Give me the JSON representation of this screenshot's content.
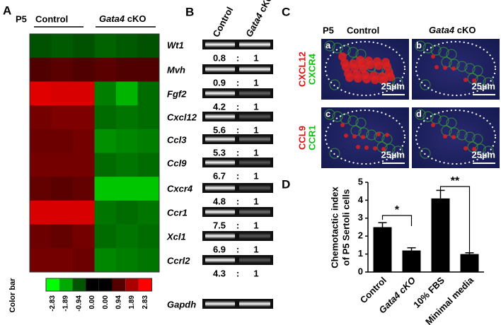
{
  "panel_a": {
    "label": "A",
    "stage": "P5",
    "control": "Control",
    "cko_gene": "Gata4",
    "cko_suffix": "cKO",
    "genes": [
      "Wt1",
      "Mvh",
      "Fgf2",
      "Cxcl12",
      "Ccl3",
      "Ccl9",
      "Cxcr4",
      "Ccr1",
      "Xcl1",
      "Ccrl2"
    ],
    "heatmap": {
      "type": "heatmap",
      "values": [
        [
          -0.9,
          -1.0,
          -0.9,
          -1.1,
          -1.0,
          -0.9
        ],
        [
          0.9,
          1.0,
          0.9,
          1.0,
          0.9,
          0.9
        ],
        [
          2.5,
          2.4,
          2.4,
          -1.4,
          -2.0,
          -1.2
        ],
        [
          1.3,
          1.4,
          1.4,
          -1.2,
          -1.3,
          -1.2
        ],
        [
          1.2,
          1.2,
          1.3,
          -1.6,
          -1.5,
          -1.4
        ],
        [
          1.3,
          1.3,
          1.3,
          -1.2,
          -1.3,
          -1.2
        ],
        [
          1.1,
          1.0,
          1.1,
          -2.2,
          -2.2,
          -2.2
        ],
        [
          2.4,
          2.4,
          2.4,
          -1.3,
          -1.2,
          -1.3
        ],
        [
          1.2,
          1.1,
          1.3,
          -1.2,
          -1.3,
          -1.2
        ],
        [
          1.3,
          1.3,
          1.2,
          -1.5,
          -1.4,
          -1.3
        ]
      ],
      "zlim": [
        -2.83,
        2.83
      ],
      "low_color": "#00ff00",
      "mid_color": "#000000",
      "high_color": "#ff0000",
      "colorbar_title": "Color bar",
      "colorbar_ticks": [
        -2.83,
        -1.89,
        -0.94,
        {
          "value": 0,
          "label": "0.00"
        },
        {
          "value": 0,
          "label": "0.00"
        },
        0.94,
        1.89,
        2.83
      ]
    }
  },
  "panel_b": {
    "label": "B",
    "control": "Control",
    "cko_gene": "Gata4",
    "cko_suffix": "cKO",
    "ratios": [
      {
        "control": "0.8",
        "cko": "1"
      },
      {
        "control": "0.9",
        "cko": "1"
      },
      {
        "control": "4.2",
        "cko": "1"
      },
      {
        "control": "5.6",
        "cko": "1"
      },
      {
        "control": "5.3",
        "cko": "1"
      },
      {
        "control": "6.7",
        "cko": "1"
      },
      {
        "control": "4.8",
        "cko": "1"
      },
      {
        "control": "7.5",
        "cko": "1"
      },
      {
        "control": "6.9",
        "cko": "1"
      },
      {
        "control": "4.3",
        "cko": "1"
      }
    ],
    "separator": ":",
    "loading_control": "Gapdh"
  },
  "panel_c": {
    "label": "C",
    "stage": "P5",
    "control": "Control",
    "cko_gene": "Gata4",
    "cko_suffix": "cKO",
    "rows": [
      {
        "red": "CXCL12",
        "green": "CXCR4"
      },
      {
        "red": "CCL9",
        "green": "CCR1"
      }
    ],
    "panels": [
      "a",
      "b",
      "c",
      "d"
    ],
    "scale_bar": "25µm"
  },
  "panel_d": {
    "label": "D",
    "chart_data": {
      "type": "bar",
      "ylabel": [
        "Chemotactic index",
        "of P5 Sertoli cells"
      ],
      "categories": [
        "Control",
        "Gata4 cKO",
        "10% FBS",
        "Minimal media"
      ],
      "values": [
        2.5,
        1.2,
        4.1,
        1.0
      ],
      "errors": [
        0.25,
        0.15,
        0.45,
        0.07
      ],
      "color": "#000000",
      "ylim": [
        0,
        5
      ],
      "yticks": [
        0,
        1,
        2,
        3,
        4,
        5
      ],
      "significance": [
        "*",
        "**"
      ]
    }
  }
}
